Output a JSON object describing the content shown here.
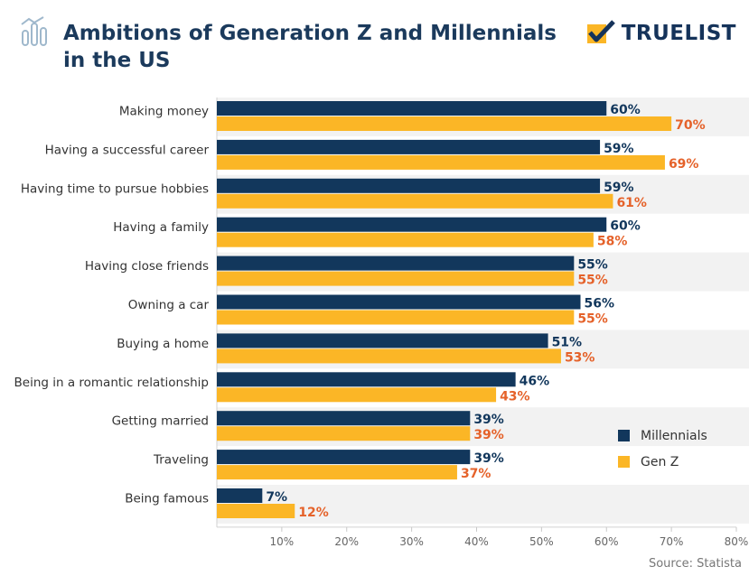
{
  "header": {
    "title_line1": "Ambitions of Generation Z and Millennials",
    "title_line2": "in the US",
    "brand": "TRUELIST",
    "icon": "bar-chart-icon",
    "brand_icon": "checkmark-box-icon"
  },
  "source": "Source: Statista",
  "colors": {
    "millennials": "#12375c",
    "genz": "#fbb626",
    "millennials_label": "#12375c",
    "genz_label": "#e5622a",
    "band": "#f2f2f2"
  },
  "chart_data": {
    "type": "bar",
    "orientation": "horizontal",
    "title": "Ambitions of Generation Z and Millennials in the US",
    "categories": [
      "Making money",
      "Having a successful career",
      "Having time to pursue hobbies",
      "Having a family",
      "Having close friends",
      "Owning a car",
      "Buying a home",
      "Being in a romantic relationship",
      "Getting married",
      "Traveling",
      "Being famous"
    ],
    "series": [
      {
        "name": "Millennials",
        "values": [
          60,
          59,
          59,
          60,
          55,
          56,
          51,
          46,
          39,
          39,
          7
        ]
      },
      {
        "name": "Gen Z",
        "values": [
          70,
          69,
          61,
          58,
          55,
          55,
          53,
          43,
          39,
          37,
          12
        ]
      }
    ],
    "value_suffix": "%",
    "xlim": [
      0,
      80
    ],
    "xticks": [
      10,
      20,
      30,
      40,
      50,
      60,
      70,
      80
    ],
    "xtick_labels": [
      "10%",
      "20%",
      "30%",
      "40%",
      "50%",
      "60%",
      "70%",
      "80%"
    ],
    "legend": [
      "Millennials",
      "Gen Z"
    ],
    "legend_position": "bottom-right",
    "xlabel": "",
    "ylabel": ""
  }
}
